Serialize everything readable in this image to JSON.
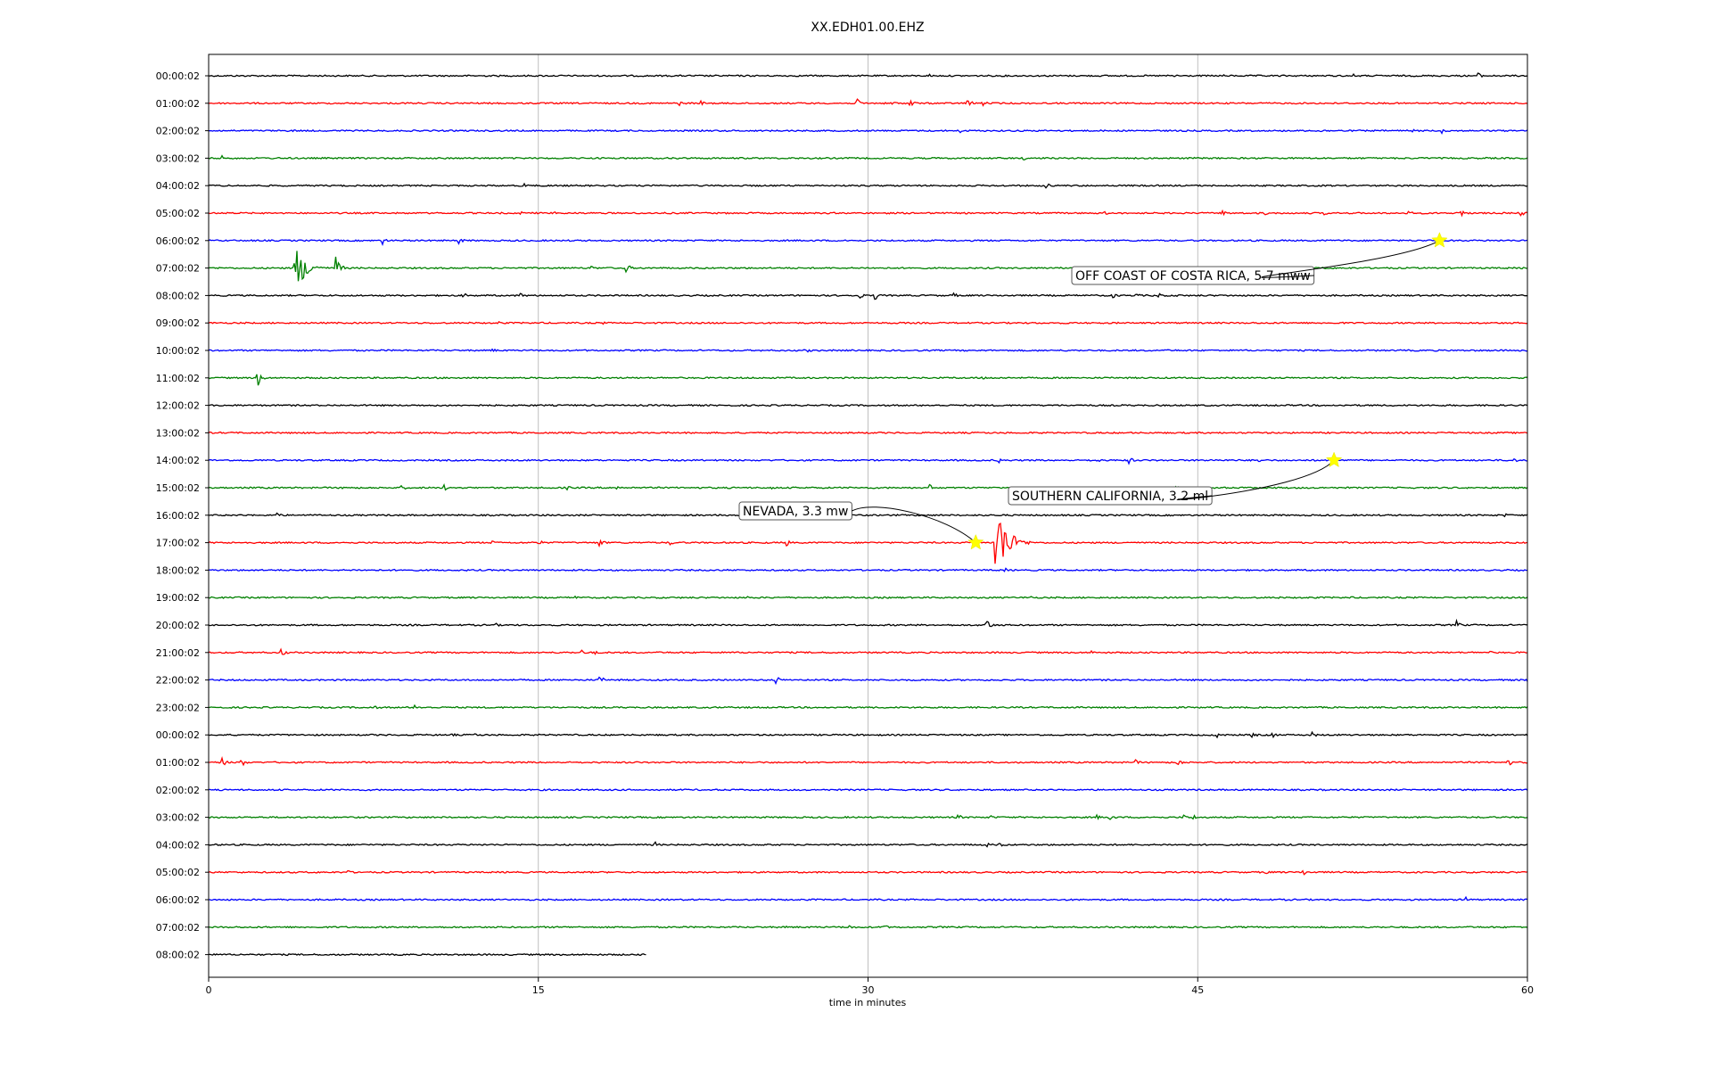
{
  "chart_data": {
    "type": "line",
    "title": "XX.EDH01.00.EHZ",
    "xlabel": "time in minutes",
    "xlim": [
      0,
      60
    ],
    "x_ticks": [
      "0",
      "15",
      "30",
      "45",
      "60"
    ],
    "x_tick_values": [
      0,
      15,
      30,
      45,
      60
    ],
    "grid": "vertical",
    "trace_colors": [
      "#000000",
      "#ff0000",
      "#0000ff",
      "#008000"
    ],
    "rows": [
      {
        "label": "00:00:02",
        "color": "#000000",
        "duration": 60,
        "events": [
          [
            32.8,
            2
          ],
          [
            43.9,
            3
          ],
          [
            46.1,
            2
          ],
          [
            52.1,
            2
          ],
          [
            57.7,
            5
          ]
        ]
      },
      {
        "label": "01:00:02",
        "color": "#ff0000",
        "duration": 60,
        "events": [
          [
            21.4,
            3
          ],
          [
            22.4,
            3
          ],
          [
            29.5,
            5
          ],
          [
            31.1,
            4
          ],
          [
            31.9,
            6
          ],
          [
            34.5,
            7
          ],
          [
            35.2,
            4
          ]
        ]
      },
      {
        "label": "02:00:02",
        "color": "#0000ff",
        "duration": 60,
        "events": [
          [
            3.8,
            2
          ],
          [
            34.2,
            3
          ],
          [
            50.6,
            3
          ],
          [
            54.6,
            5
          ],
          [
            56.1,
            3
          ]
        ]
      },
      {
        "label": "03:00:02",
        "color": "#008000",
        "duration": 60,
        "events": [
          [
            0.6,
            3
          ],
          [
            21.3,
            2
          ],
          [
            37.1,
            2
          ],
          [
            40.1,
            2
          ]
        ]
      },
      {
        "label": "04:00:02",
        "color": "#000000",
        "duration": 60,
        "events": [
          [
            14.4,
            3
          ],
          [
            20.6,
            2
          ],
          [
            38.1,
            4
          ]
        ]
      },
      {
        "label": "05:00:02",
        "color": "#ff0000",
        "duration": 60,
        "events": [
          [
            14.2,
            2
          ],
          [
            15.8,
            2
          ],
          [
            40.8,
            2
          ],
          [
            46.1,
            4
          ],
          [
            48.1,
            2
          ],
          [
            50.8,
            2
          ],
          [
            54.6,
            3
          ],
          [
            57.0,
            5
          ],
          [
            59.7,
            4
          ]
        ]
      },
      {
        "label": "06:00:02",
        "color": "#0000ff",
        "duration": 60,
        "events": [
          [
            7.9,
            5
          ],
          [
            11.4,
            4
          ],
          [
            29.0,
            2
          ]
        ]
      },
      {
        "label": "07:00:02",
        "color": "#008000",
        "duration": 60,
        "events": [
          [
            3.9,
            30
          ],
          [
            5.8,
            16
          ],
          [
            17.4,
            3
          ],
          [
            19.0,
            6
          ]
        ]
      },
      {
        "label": "08:00:02",
        "color": "#000000",
        "duration": 60,
        "events": [
          [
            11.6,
            3
          ],
          [
            14.2,
            3
          ],
          [
            29.6,
            4
          ],
          [
            30.3,
            6
          ],
          [
            33.9,
            3
          ],
          [
            41.1,
            4
          ],
          [
            42.2,
            3
          ],
          [
            43.2,
            4
          ],
          [
            44.0,
            3
          ]
        ]
      },
      {
        "label": "09:00:02",
        "color": "#ff0000",
        "duration": 60,
        "events": [
          [
            13.2,
            2
          ],
          [
            17.9,
            2
          ],
          [
            51.5,
            2
          ]
        ]
      },
      {
        "label": "10:00:02",
        "color": "#0000ff",
        "duration": 60,
        "events": [
          [
            12.9,
            3
          ],
          [
            27.3,
            2
          ]
        ]
      },
      {
        "label": "11:00:02",
        "color": "#008000",
        "duration": 60,
        "events": [
          [
            2.2,
            12
          ],
          [
            35.2,
            3
          ]
        ]
      },
      {
        "label": "12:00:02",
        "color": "#000000",
        "duration": 60,
        "events": []
      },
      {
        "label": "13:00:02",
        "color": "#ff0000",
        "duration": 60,
        "events": []
      },
      {
        "label": "14:00:02",
        "color": "#0000ff",
        "duration": 60,
        "events": [
          [
            35.9,
            4
          ],
          [
            40.4,
            3
          ],
          [
            41.9,
            4
          ],
          [
            45.6,
            2
          ],
          [
            47.7,
            4
          ],
          [
            59.4,
            3
          ]
        ]
      },
      {
        "label": "15:00:02",
        "color": "#008000",
        "duration": 60,
        "events": [
          [
            6.1,
            3
          ],
          [
            8.8,
            3
          ],
          [
            10.7,
            4
          ],
          [
            16.3,
            3
          ],
          [
            18.6,
            3
          ],
          [
            25.6,
            2
          ],
          [
            32.8,
            4
          ],
          [
            44.0,
            2
          ],
          [
            45.8,
            2
          ]
        ]
      },
      {
        "label": "16:00:02",
        "color": "#000000",
        "duration": 60,
        "events": [
          [
            3.1,
            4
          ],
          [
            59.0,
            2
          ]
        ]
      },
      {
        "label": "17:00:02",
        "color": "#ff0000",
        "duration": 60,
        "events": [
          [
            12.9,
            3
          ],
          [
            15.0,
            4
          ],
          [
            17.8,
            5
          ],
          [
            21.0,
            3
          ],
          [
            26.3,
            4
          ],
          [
            35.8,
            50
          ]
        ]
      },
      {
        "label": "18:00:02",
        "color": "#0000ff",
        "duration": 60,
        "events": [
          [
            36.2,
            3
          ]
        ]
      },
      {
        "label": "19:00:02",
        "color": "#008000",
        "duration": 60,
        "events": [
          [
            16.7,
            2
          ],
          [
            24.5,
            2
          ],
          [
            37.4,
            2
          ],
          [
            48.6,
            2
          ],
          [
            51.9,
            2
          ]
        ]
      },
      {
        "label": "20:00:02",
        "color": "#000000",
        "duration": 60,
        "events": [
          [
            13.1,
            2
          ],
          [
            35.4,
            8
          ],
          [
            56.8,
            5
          ]
        ]
      },
      {
        "label": "21:00:02",
        "color": "#ff0000",
        "duration": 60,
        "events": [
          [
            3.3,
            6
          ],
          [
            17.0,
            4
          ],
          [
            17.6,
            3
          ],
          [
            40.2,
            2
          ],
          [
            58.2,
            3
          ]
        ]
      },
      {
        "label": "22:00:02",
        "color": "#0000ff",
        "duration": 60,
        "events": [
          [
            17.8,
            5
          ],
          [
            25.8,
            6
          ],
          [
            59.9,
            3
          ]
        ]
      },
      {
        "label": "23:00:02",
        "color": "#008000",
        "duration": 60,
        "events": [
          [
            7.5,
            3
          ],
          [
            9.4,
            4
          ]
        ]
      },
      {
        "label": "00:00:02",
        "color": "#000000",
        "duration": 60,
        "events": [
          [
            11.1,
            2
          ],
          [
            12.1,
            2
          ],
          [
            45.9,
            4
          ],
          [
            47.5,
            4
          ],
          [
            48.4,
            4
          ],
          [
            50.2,
            4
          ]
        ]
      },
      {
        "label": "01:00:02",
        "color": "#ff0000",
        "duration": 60,
        "events": [
          [
            0.6,
            6
          ],
          [
            1.5,
            5
          ],
          [
            41.3,
            3
          ],
          [
            42.2,
            3
          ],
          [
            44.1,
            5
          ],
          [
            59.1,
            5
          ]
        ]
      },
      {
        "label": "02:00:02",
        "color": "#0000ff",
        "duration": 60,
        "events": []
      },
      {
        "label": "03:00:02",
        "color": "#008000",
        "duration": 60,
        "events": [
          [
            34.1,
            4
          ],
          [
            35.6,
            3
          ],
          [
            40.4,
            3
          ],
          [
            41.0,
            4
          ],
          [
            44.4,
            3
          ],
          [
            44.8,
            3
          ]
        ]
      },
      {
        "label": "04:00:02",
        "color": "#000000",
        "duration": 60,
        "events": [
          [
            20.3,
            4
          ],
          [
            35.4,
            4
          ],
          [
            36.0,
            3
          ]
        ]
      },
      {
        "label": "05:00:02",
        "color": "#ff0000",
        "duration": 60,
        "events": [
          [
            6.3,
            3
          ],
          [
            48.1,
            3
          ],
          [
            49.8,
            4
          ]
        ]
      },
      {
        "label": "06:00:02",
        "color": "#0000ff",
        "duration": 60,
        "events": [
          [
            57.2,
            4
          ]
        ]
      },
      {
        "label": "07:00:02",
        "color": "#008000",
        "duration": 60,
        "events": [
          [
            26.1,
            3
          ],
          [
            29.1,
            4
          ],
          [
            30.7,
            4
          ],
          [
            33.2,
            2
          ]
        ]
      },
      {
        "label": "08:00:02",
        "color": "#000000",
        "duration": 19.9,
        "events": []
      }
    ],
    "annotations": [
      {
        "text": "OFF COAST OF COSTA RICA, 5.7 mww",
        "row": 6,
        "x": 56.0,
        "marker": "star",
        "marker_color": "#ffff00"
      },
      {
        "text": "SOUTHERN CALIFORNIA, 3.2 ml",
        "row": 14,
        "x": 51.2,
        "marker": "star",
        "marker_color": "#ffff00"
      },
      {
        "text": "NEVADA, 3.3 mw",
        "row": 17,
        "x": 34.9,
        "marker": "star",
        "marker_color": "#ffff00"
      }
    ]
  }
}
